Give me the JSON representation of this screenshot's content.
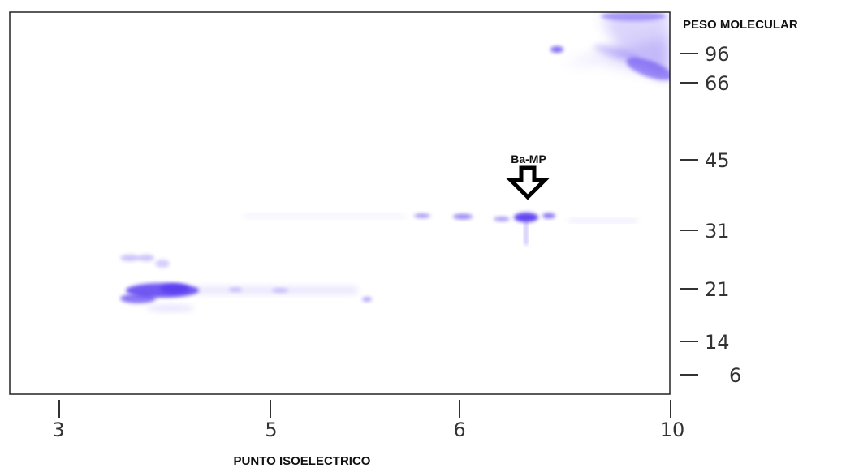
{
  "figure": {
    "y_axis_title": "PESO MOLECULAR",
    "x_axis_title": "PUNTO ISOELECTRICO",
    "marker_label": "Ba-MP",
    "band_color": "#5a3df0",
    "frame_color": "#222222"
  },
  "y_ticks": [
    {
      "label": "96"
    },
    {
      "label": "66"
    },
    {
      "label": "45"
    },
    {
      "label": "31"
    },
    {
      "label": "21"
    },
    {
      "label": "14"
    },
    {
      "label": "6"
    }
  ],
  "x_ticks": [
    {
      "label": "3"
    },
    {
      "label": "5"
    },
    {
      "label": "6"
    },
    {
      "label": "10"
    }
  ]
}
